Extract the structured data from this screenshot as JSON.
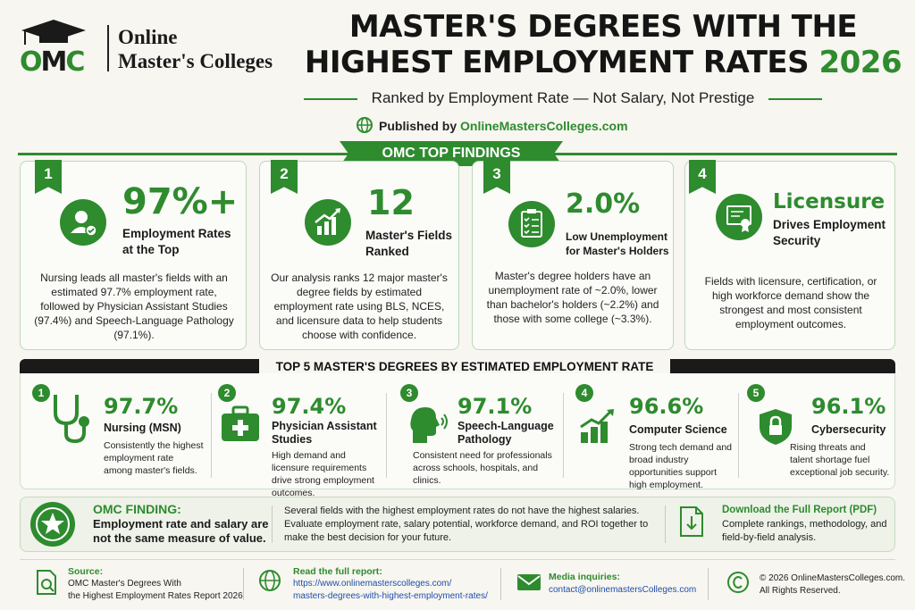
{
  "header": {
    "logo_initials": "OMC",
    "logo_line1": "Online",
    "logo_line2": "Master's Colleges",
    "title_line1": "MASTER'S DEGREES WITH THE",
    "title_line2": "HIGHEST EMPLOYMENT RATES",
    "title_year": "2026",
    "subtitle": "Ranked by Employment Rate — Not Salary, Not Prestige",
    "published_prefix": "Published by",
    "published_site": "OnlineMastersColleges.com"
  },
  "findings": {
    "banner": "OMC TOP FINDINGS",
    "cards": [
      {
        "num": "1",
        "big": "97%+",
        "label1": "Employment Rates",
        "label2": "at the Top",
        "icon": "user-check-icon",
        "body": "Nursing leads all master's fields with an estimated 97.7% employment rate, followed by Physician Assistant Studies (97.4%) and Speech-Language Pathology (97.1%)."
      },
      {
        "num": "2",
        "big": "12",
        "label1": "Master's Fields",
        "label2": "Ranked",
        "icon": "growth-chart-icon",
        "body": "Our analysis ranks 12 major master's degree fields by estimated employment rate using BLS, NCES, and licensure data to help students choose with confidence."
      },
      {
        "num": "3",
        "big": "2.0%",
        "label1": "Low Unemployment",
        "label2": "for Master's Holders",
        "icon": "clipboard-check-icon",
        "body": "Master's degree holders have an unemployment rate of ~2.0%, lower than bachelor's holders (~2.2%) and those with some college (~3.3%)."
      },
      {
        "num": "4",
        "big": "Licensure",
        "label1": "Drives Employment",
        "label2": "Security",
        "icon": "certificate-icon",
        "body": "Fields with licensure, certification, or high workforce demand show the strongest and most consistent employment outcomes."
      }
    ]
  },
  "top5": {
    "title": "TOP 5 MASTER'S DEGREES BY ESTIMATED EMPLOYMENT RATE",
    "items": [
      {
        "num": "1",
        "pct": "97.7%",
        "name1": "Nursing (MSN)",
        "name2": "",
        "icon": "stethoscope-icon",
        "desc": "Consistently the highest employment rate among master's fields."
      },
      {
        "num": "2",
        "pct": "97.4%",
        "name1": "Physician Assistant",
        "name2": "Studies",
        "icon": "medical-kit-icon",
        "desc": "High demand and licensure requirements drive strong employment outcomes."
      },
      {
        "num": "3",
        "pct": "97.1%",
        "name1": "Speech-Language",
        "name2": "Pathology",
        "icon": "speaking-head-icon",
        "desc": "Consistent need for professionals across schools, hospitals, and clinics."
      },
      {
        "num": "4",
        "pct": "96.6%",
        "name1": "Computer Science",
        "name2": "",
        "icon": "bar-growth-icon",
        "desc": "Strong tech demand and broad industry opportunities support high employment."
      },
      {
        "num": "5",
        "pct": "96.1%",
        "name1": "Cybersecurity",
        "name2": "",
        "icon": "shield-lock-icon",
        "desc": "Rising threats and talent shortage fuel exceptional job security."
      }
    ]
  },
  "omc_finding": {
    "head": "OMC FINDING:",
    "sub1": "Employment rate and salary are",
    "sub2": "not the same measure of value.",
    "text": "Several fields with the highest employment rates do not have the highest salaries. Evaluate employment rate, salary potential, workforce demand, and ROI together to make the best decision for your future.",
    "download_head": "Download the Full Report (PDF)",
    "download_text": "Complete rankings, methodology, and field-by-field analysis."
  },
  "footer": {
    "source_label": "Source:",
    "source_line1": "OMC Master's Degrees With",
    "source_line2": "the Highest Employment Rates Report 2026",
    "read_label": "Read the full report:",
    "read_line1": "https://www.onlinemasterscolleges.com/",
    "read_line2": "masters-degrees-with-highest-employment-rates/",
    "media_label": "Media inquiries:",
    "media_email": "contact@onlinemastersColleges.com",
    "copy_line1": "© 2026 OnlineMastersColleges.com.",
    "copy_line2": "All Rights Reserved."
  },
  "colors": {
    "accent": "#2e8b2e",
    "dark": "#1a1a1a",
    "background": "#f7f6f0"
  }
}
